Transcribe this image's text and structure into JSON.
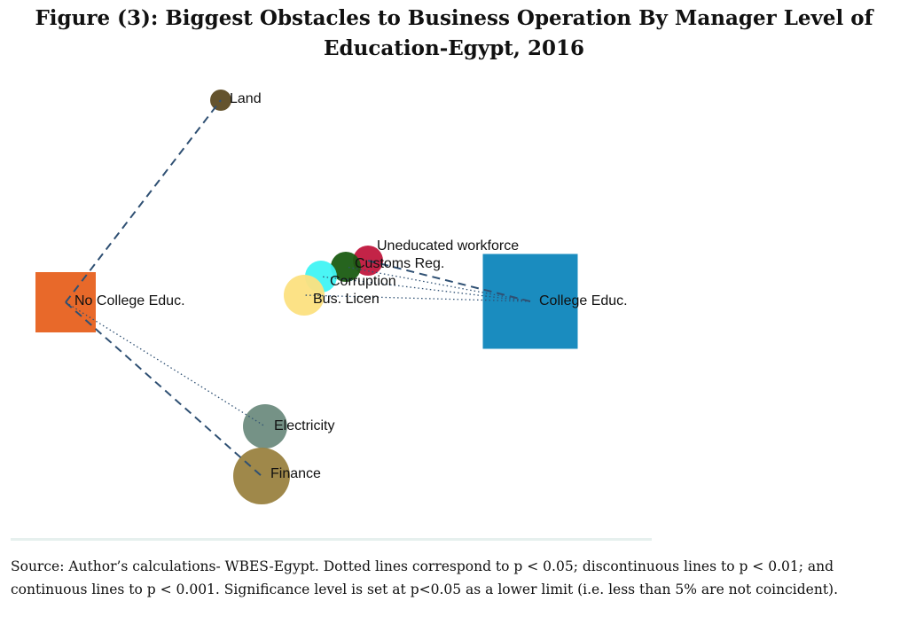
{
  "title": "Figure (3): Biggest Obstacles to Business Operation By Manager Level of Education-Egypt, 2016",
  "nodes": [
    {
      "id": "nocollege",
      "label": "No College Educ.",
      "shape": "square",
      "color": "#e8692a"
    },
    {
      "id": "college",
      "label": "College Educ.",
      "shape": "square",
      "color": "#1a8cbf"
    },
    {
      "id": "land",
      "label": "Land",
      "shape": "circle",
      "color": "#5c4a22"
    },
    {
      "id": "unedu",
      "label": "Uneducated workforce",
      "shape": "circle",
      "color": "#c0173d"
    },
    {
      "id": "customs",
      "label": "Customs Reg.",
      "shape": "circle",
      "color": "#1a5c12"
    },
    {
      "id": "corruption",
      "label": "Corruption",
      "shape": "circle",
      "color": "#40f4f4"
    },
    {
      "id": "buslicen",
      "label": "Bus. Licen",
      "shape": "circle",
      "color": "#fce080"
    },
    {
      "id": "electricity",
      "label": "Electricity",
      "shape": "circle",
      "color": "#6e8c80"
    },
    {
      "id": "finance",
      "label": "Finance",
      "shape": "circle",
      "color": "#9a8240"
    }
  ],
  "edges": [
    {
      "from": "nocollege",
      "to": "land",
      "style": "dashed"
    },
    {
      "from": "nocollege",
      "to": "finance",
      "style": "dashed"
    },
    {
      "from": "nocollege",
      "to": "electricity",
      "style": "dotted"
    },
    {
      "from": "college",
      "to": "unedu",
      "style": "dashed"
    },
    {
      "from": "college",
      "to": "customs",
      "style": "dotted"
    },
    {
      "from": "college",
      "to": "corruption",
      "style": "dotted"
    },
    {
      "from": "college",
      "to": "buslicen",
      "style": "dotted"
    }
  ],
  "edge_color": "#2f5073",
  "source_note": "Source: Author’s calculations- WBES-Egypt. Dotted lines correspond to p < 0.05; discontinuous lines to p < 0.01; and continuous lines to p < 0.001. Significance level is set at p<0.05 as a lower limit (i.e. less than 5% are not coincident)."
}
